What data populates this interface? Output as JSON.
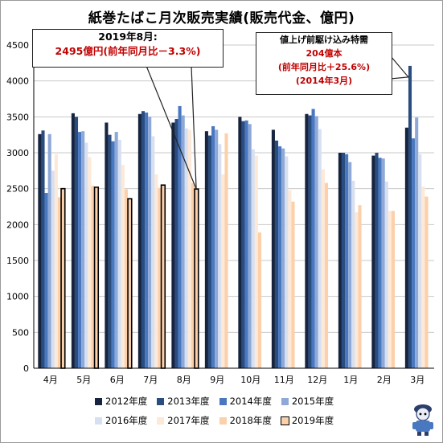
{
  "chart_data": {
    "type": "bar",
    "title": "紙巻たばこ月次販売実績(販売代金、億円)",
    "categories": [
      "4月",
      "5月",
      "6月",
      "7月",
      "8月",
      "9月",
      "10月",
      "11月",
      "12月",
      "1月",
      "2月",
      "3月"
    ],
    "ylim": [
      0,
      4500
    ],
    "yticks": [
      0,
      500,
      1000,
      1500,
      2000,
      2500,
      3000,
      3500,
      4000,
      4500
    ],
    "grid": true,
    "legend_position": "bottom",
    "series": [
      {
        "name": "2012年度",
        "color": "#17243f",
        "values": [
          3260,
          3550,
          3420,
          3540,
          3420,
          3300,
          3500,
          3320,
          3540,
          3000,
          2960,
          3350
        ]
      },
      {
        "name": "2013年度",
        "color": "#2a4d7f",
        "values": [
          3310,
          3500,
          3250,
          3580,
          3470,
          3240,
          3440,
          3170,
          3520,
          3000,
          3000,
          4210
        ]
      },
      {
        "name": "2014年度",
        "color": "#4a78c0",
        "values": [
          2440,
          3290,
          3160,
          3560,
          3650,
          3370,
          3450,
          3090,
          3610,
          2980,
          2930,
          3200
        ]
      },
      {
        "name": "2015年度",
        "color": "#8ea9d7",
        "values": [
          3260,
          3300,
          3290,
          3500,
          3520,
          3320,
          3400,
          3060,
          3510,
          2870,
          2920,
          3490
        ]
      },
      {
        "name": "2016年度",
        "color": "#d7e0f1",
        "values": [
          2750,
          3140,
          3180,
          3230,
          3340,
          3120,
          3050,
          2950,
          3330,
          2610,
          2600,
          2980
        ]
      },
      {
        "name": "2017年度",
        "color": "#fde9d8",
        "values": [
          2980,
          2940,
          2830,
          2700,
          3320,
          2700,
          2960,
          2480,
          2770,
          2170,
          2190,
          2530
        ]
      },
      {
        "name": "2018年度",
        "color": "#fbd0ab",
        "values": [
          2380,
          2540,
          2490,
          2510,
          2580,
          3270,
          1890,
          2320,
          2580,
          2270,
          2190,
          2390
        ]
      },
      {
        "name": "2019年度",
        "color": "#fbd0ab",
        "values": [
          2500,
          2520,
          2360,
          2550,
          2495,
          null,
          null,
          null,
          null,
          null,
          null,
          null
        ]
      }
    ],
    "annotations": [
      {
        "lines": [
          "2019年8月:",
          "2495億円(前年同月比－3.3%)"
        ]
      },
      {
        "lines": [
          "値上げ前駆け込み特需",
          "204億本",
          "(前年同月比＋25.6%)",
          "(2014年3月)"
        ]
      }
    ]
  }
}
